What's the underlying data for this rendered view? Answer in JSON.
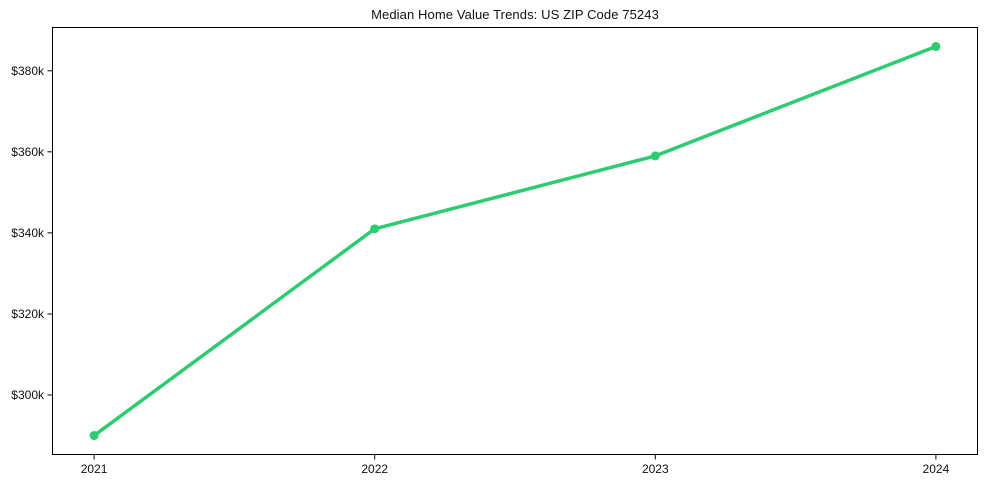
{
  "title": "Median Home Value Trends: US ZIP Code 75243",
  "chart_data": {
    "type": "line",
    "title": "Median Home Value Trends: US ZIP Code 75243",
    "xlabel": "",
    "ylabel": "",
    "x": [
      2021,
      2022,
      2023,
      2024
    ],
    "x_tick_labels": [
      "2021",
      "2022",
      "2023",
      "2024"
    ],
    "series": [
      {
        "name": "median-home-value",
        "values": [
          290000,
          341000,
          359000,
          386000
        ],
        "color": "#2ecc71",
        "marker": "circle"
      }
    ],
    "y_ticks": [
      {
        "value": 300000,
        "label": "$300k"
      },
      {
        "value": 320000,
        "label": "$320k"
      },
      {
        "value": 340000,
        "label": "$340k"
      },
      {
        "value": 360000,
        "label": "$360k"
      },
      {
        "value": 380000,
        "label": "$380k"
      }
    ],
    "xlim": [
      2020.85,
      2024.15
    ],
    "ylim": [
      285200,
      390800
    ],
    "grid": false,
    "legend": null,
    "frame_color": "#000000",
    "background_color": "#ffffff"
  }
}
